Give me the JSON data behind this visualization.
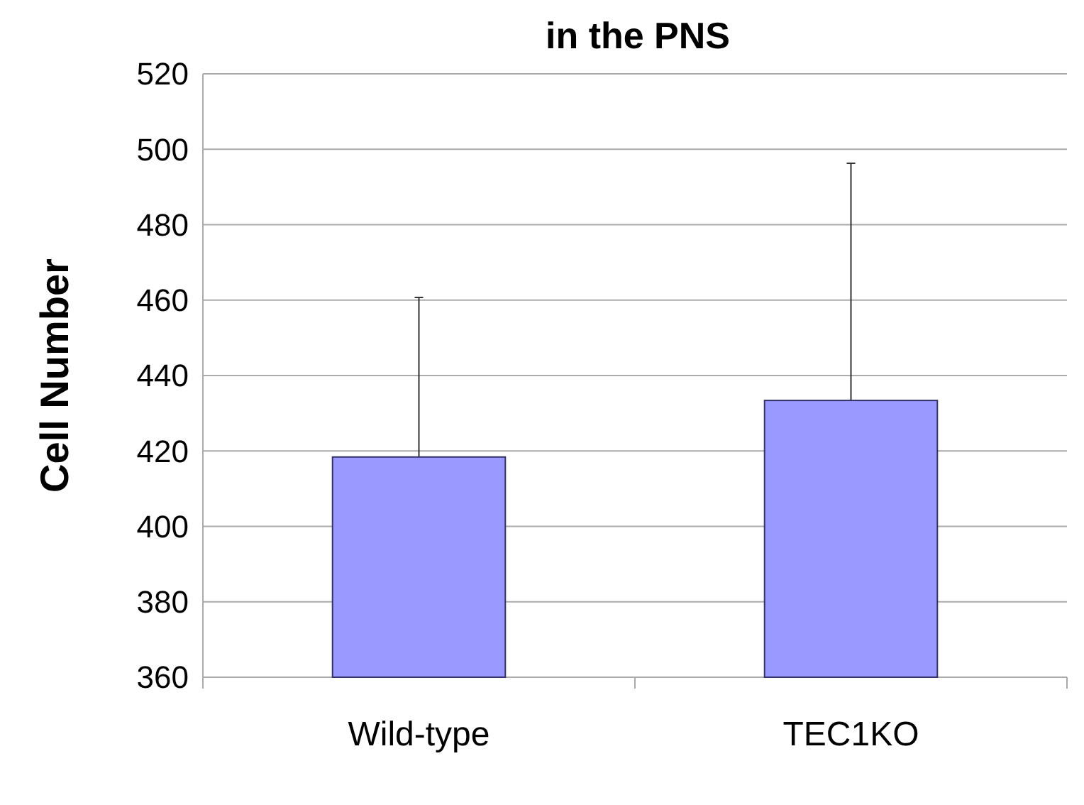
{
  "chart_data": {
    "type": "bar",
    "title": "in the PNS",
    "ylabel": "Cell Number",
    "categories": [
      "Wild-type",
      "TEC1KO"
    ],
    "values": [
      418.4,
      433.4
    ],
    "errors": [
      [
        418.4,
        460.7
      ],
      [
        433.4,
        496.3
      ]
    ],
    "color": "#9999ff",
    "ylim": [
      360,
      520
    ],
    "yticks": [
      360,
      380,
      400,
      420,
      440,
      460,
      480,
      500,
      520
    ],
    "grid": "y"
  }
}
